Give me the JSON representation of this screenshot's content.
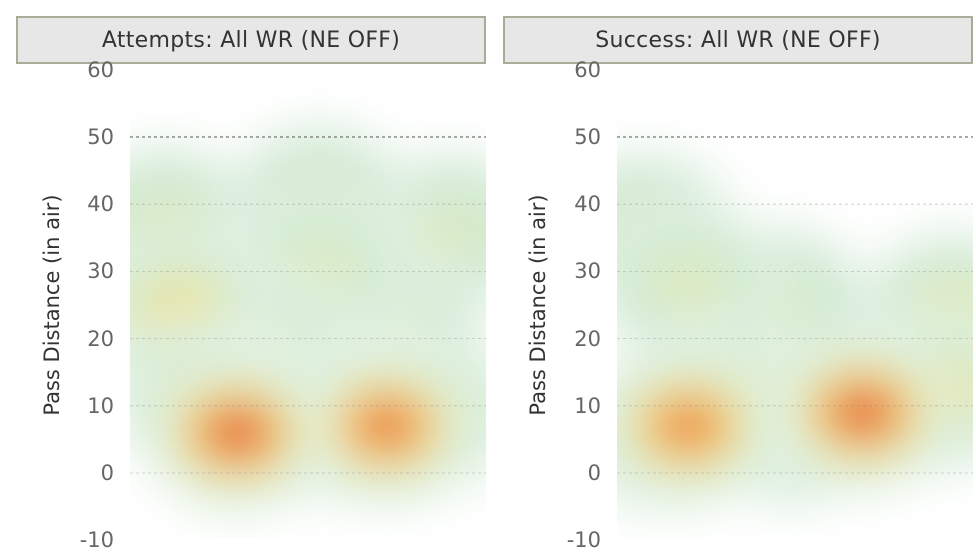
{
  "chart_data": [
    {
      "type": "heatmap",
      "title": "Attempts: All WR (NE OFF)",
      "ylabel": "Pass Distance (in air)",
      "xlabel": "",
      "yticks": [
        60,
        50,
        40,
        30,
        20,
        10,
        0,
        -10
      ],
      "ylim": [
        -12,
        62
      ],
      "grid": true,
      "colorscale": [
        "#e9f5ea",
        "#cfe9d2",
        "#f5e98a",
        "#f2b04e",
        "#e05b45"
      ],
      "density_clusters": [
        {
          "x": 0.3,
          "y": 6,
          "intensity": 1.0
        },
        {
          "x": 0.2,
          "y": 11,
          "intensity": 0.55
        },
        {
          "x": 0.72,
          "y": 7,
          "intensity": 0.9
        },
        {
          "x": 0.84,
          "y": 9,
          "intensity": 0.6
        },
        {
          "x": 0.5,
          "y": 8,
          "intensity": 0.35
        },
        {
          "x": 0.14,
          "y": 24,
          "intensity": 0.45
        },
        {
          "x": 0.1,
          "y": 37,
          "intensity": 0.2
        },
        {
          "x": 0.53,
          "y": 40,
          "intensity": 0.2
        },
        {
          "x": 0.53,
          "y": 30,
          "intensity": 0.2
        },
        {
          "x": 0.9,
          "y": 36,
          "intensity": 0.15
        },
        {
          "x": 0.4,
          "y": 18,
          "intensity": 0.2
        },
        {
          "x": 0.75,
          "y": 20,
          "intensity": 0.15
        }
      ]
    },
    {
      "type": "heatmap",
      "title": "Success: All WR (NE OFF)",
      "ylabel": "Pass Distance (in air)",
      "xlabel": "",
      "yticks": [
        60,
        50,
        40,
        30,
        20,
        10,
        0,
        -10
      ],
      "ylim": [
        -12,
        62
      ],
      "grid": true,
      "colorscale": [
        "#e9f5ea",
        "#cfe9d2",
        "#f5e98a",
        "#f2b04e",
        "#e05b45"
      ],
      "density_clusters": [
        {
          "x": 0.2,
          "y": 7,
          "intensity": 0.85
        },
        {
          "x": 0.3,
          "y": 11,
          "intensity": 0.75
        },
        {
          "x": 0.12,
          "y": 6,
          "intensity": 0.6
        },
        {
          "x": 0.69,
          "y": 9,
          "intensity": 1.0
        },
        {
          "x": 0.9,
          "y": 12,
          "intensity": 0.45
        },
        {
          "x": 0.5,
          "y": 7,
          "intensity": 0.3
        },
        {
          "x": 0.08,
          "y": 36,
          "intensity": 0.2
        },
        {
          "x": 0.2,
          "y": 28,
          "intensity": 0.2
        },
        {
          "x": 0.94,
          "y": 24,
          "intensity": 0.3
        },
        {
          "x": 0.45,
          "y": 25,
          "intensity": 0.15
        }
      ]
    }
  ]
}
